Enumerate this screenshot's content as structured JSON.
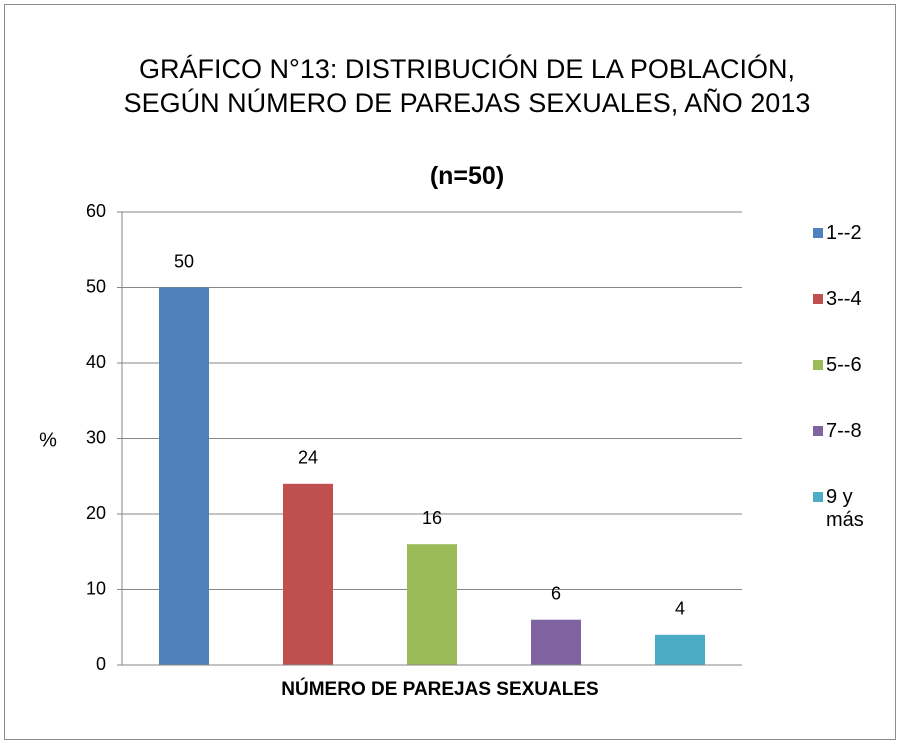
{
  "chart_data": {
    "type": "bar",
    "title": "GRÁFICO N°13: DISTRIBUCIÓN DE LA POBLACIÓN, SEGÚN NÚMERO DE PAREJAS SEXUALES, AÑO 2013",
    "subtitle": "(n=50)",
    "x_label": "NÚMERO DE PAREJAS SEXUALES",
    "y_label": "%",
    "categories": [
      null
    ],
    "series": [
      {
        "name": "1--2",
        "color": "#4f81bd",
        "values": [
          50
        ]
      },
      {
        "name": "3--4",
        "color": "#c0504d",
        "values": [
          24
        ]
      },
      {
        "name": "5--6",
        "color": "#9bbb59",
        "values": [
          16
        ]
      },
      {
        "name": "7--8",
        "color": "#8064a2",
        "values": [
          6
        ]
      },
      {
        "name": "9 y más",
        "color": "#4bacc6",
        "values": [
          4
        ]
      }
    ],
    "ylim": [
      0,
      60
    ],
    "yticks": [
      0,
      10,
      20,
      30,
      40,
      50,
      60
    ],
    "grid": true,
    "legend": "right"
  }
}
